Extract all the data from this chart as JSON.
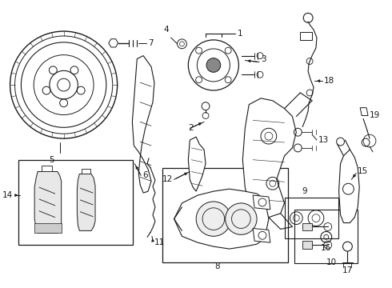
{
  "bg": "#ffffff",
  "lc": "#1a1a1a",
  "fig_w": 4.9,
  "fig_h": 3.6,
  "dpi": 100,
  "fs": 7.5
}
